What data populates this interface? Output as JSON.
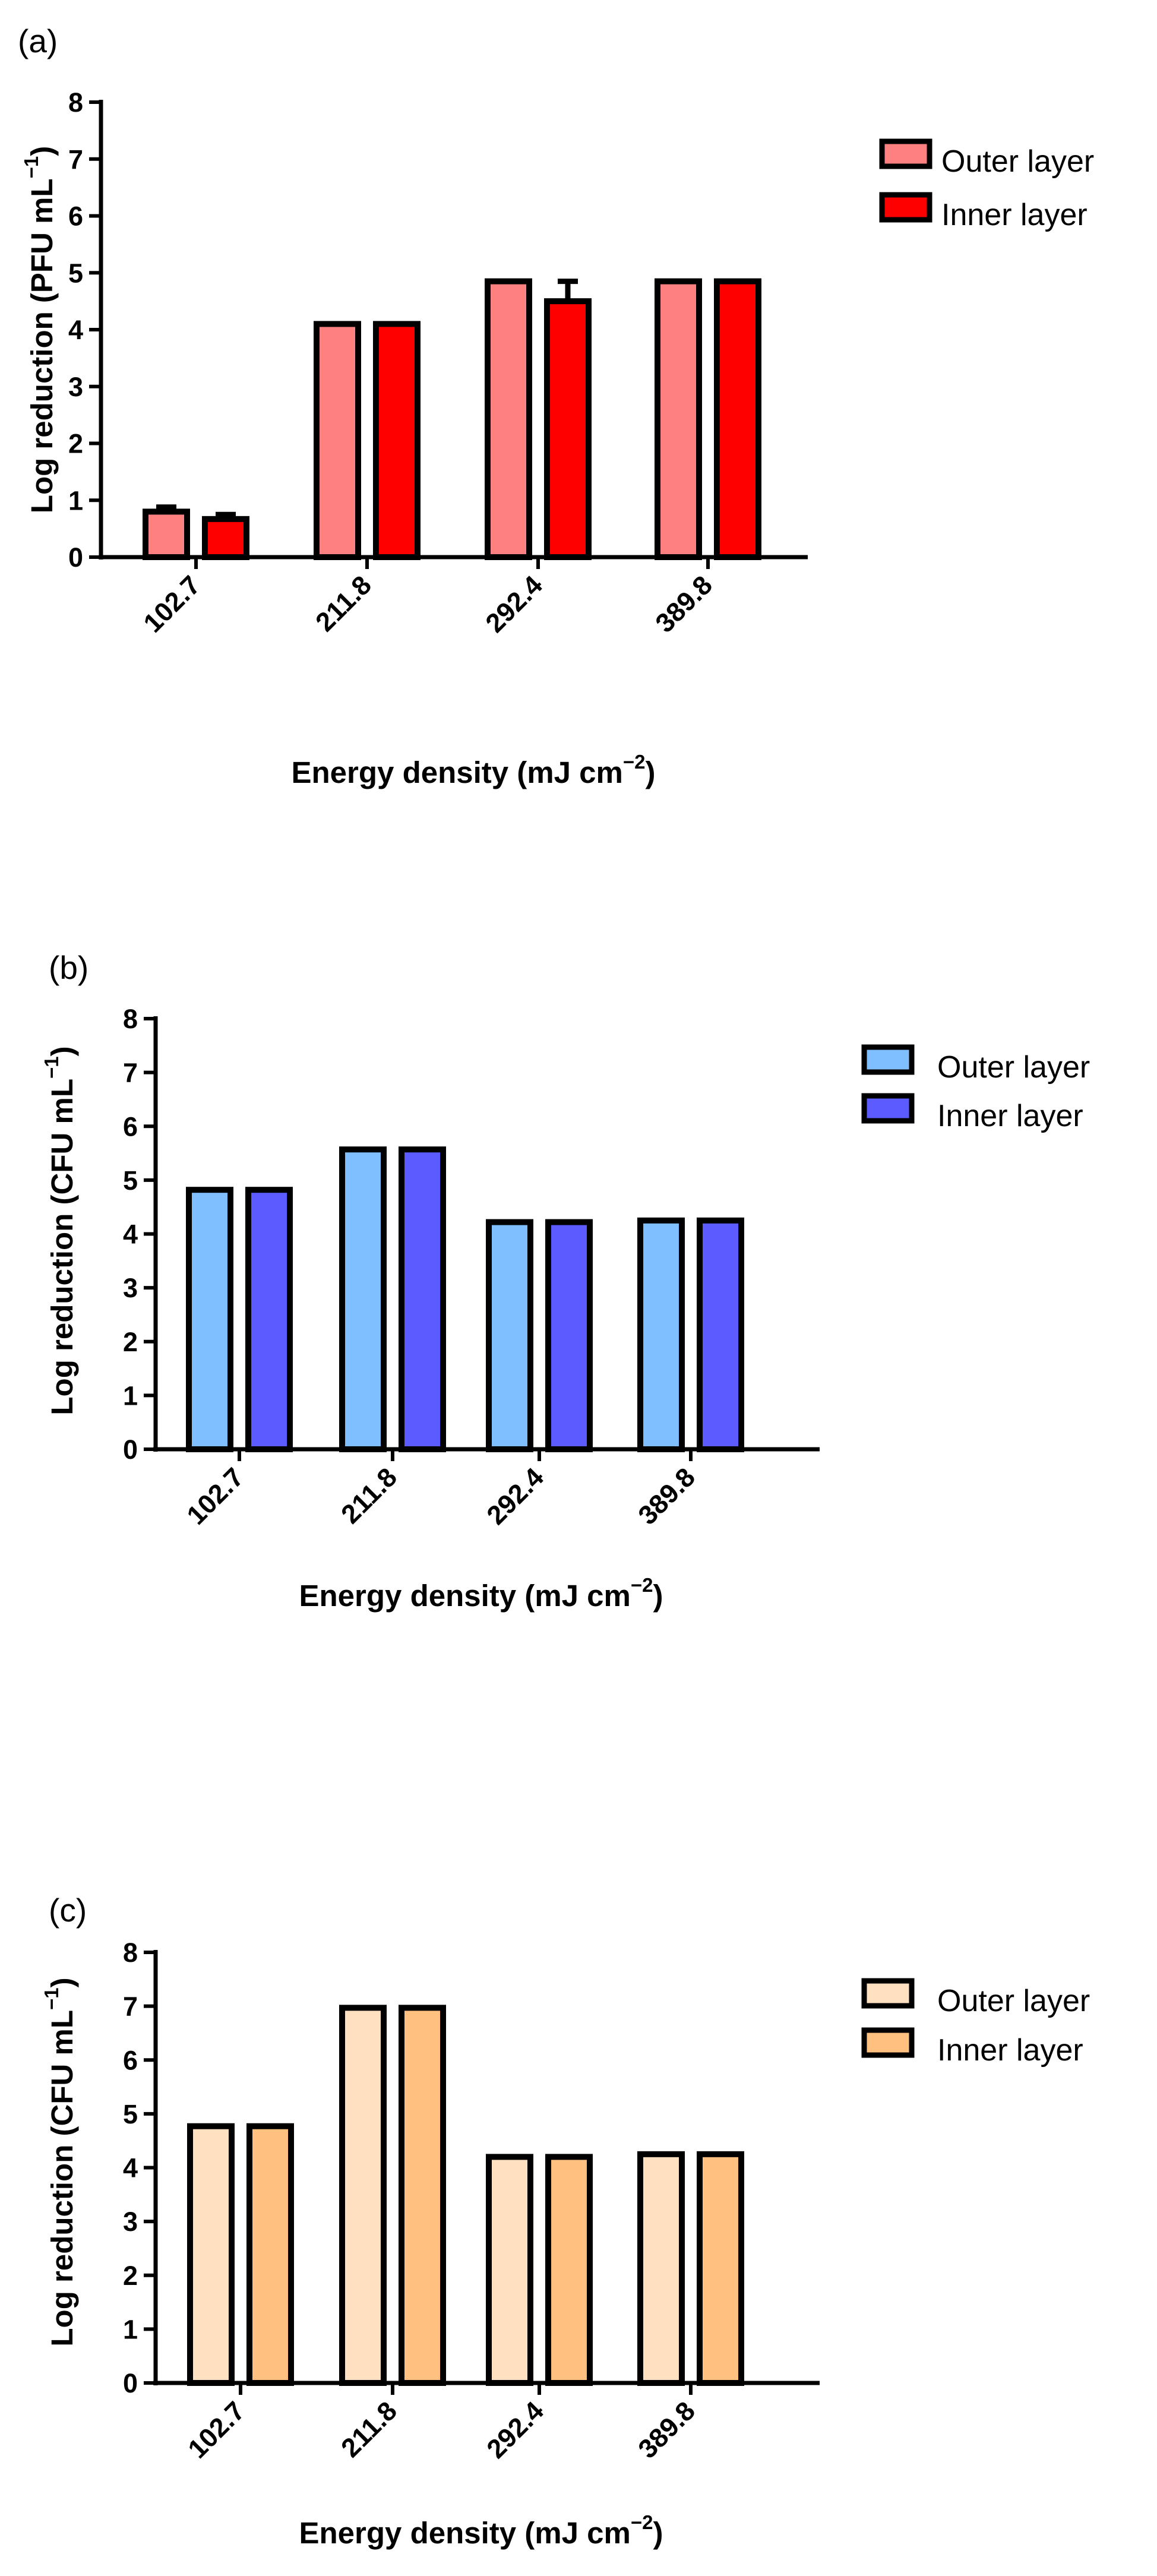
{
  "chart_data": [
    {
      "type": "bar",
      "panel_label": "(a)",
      "categories": [
        "102.7",
        "211.8",
        "292.4",
        "389.8"
      ],
      "series": [
        {
          "name": "Outer layer",
          "values": [
            0.8,
            4.1,
            4.85,
            4.85
          ],
          "errors": [
            0.08,
            0,
            0,
            0
          ],
          "color": "#ff8080"
        },
        {
          "name": "Inner layer",
          "values": [
            0.67,
            4.1,
            4.5,
            4.85
          ],
          "errors": [
            0.08,
            0,
            0.35,
            0
          ],
          "color": "#ff0000"
        }
      ],
      "ylabel_main": "Log reduction (PFU mL",
      "ylabel_sup": "−1",
      "ylabel_end": ")",
      "xlabel_main": "Energy density (mJ cm",
      "xlabel_sup": "−2",
      "xlabel_end": ")",
      "ylim": [
        0,
        8
      ],
      "yticks": [
        "0",
        "1",
        "2",
        "3",
        "4",
        "5",
        "6",
        "7",
        "8"
      ],
      "legend_position": "top-right"
    },
    {
      "type": "bar",
      "panel_label": "(b)",
      "categories": [
        "102.7",
        "211.8",
        "292.4",
        "389.8"
      ],
      "series": [
        {
          "name": "Outer layer",
          "values": [
            4.82,
            5.57,
            4.22,
            4.25
          ],
          "errors": [
            0,
            0,
            0,
            0
          ],
          "color": "#80bfff"
        },
        {
          "name": "Inner layer",
          "values": [
            4.82,
            5.57,
            4.22,
            4.25
          ],
          "errors": [
            0,
            0,
            0,
            0
          ],
          "color": "#5b5bff"
        }
      ],
      "ylabel_main": "Log reduction (CFU mL",
      "ylabel_sup": "−1",
      "ylabel_end": ")",
      "xlabel_main": "Energy density (mJ cm",
      "xlabel_sup": "−2",
      "xlabel_end": ")",
      "ylim": [
        0,
        8
      ],
      "yticks": [
        "0",
        "1",
        "2",
        "3",
        "4",
        "5",
        "6",
        "7",
        "8"
      ],
      "legend_position": "top-right"
    },
    {
      "type": "bar",
      "panel_label": "(c)",
      "categories": [
        "102.7",
        "211.8",
        "292.4",
        "389.8"
      ],
      "series": [
        {
          "name": "Outer layer",
          "values": [
            4.77,
            6.97,
            4.2,
            4.25
          ],
          "errors": [
            0,
            0,
            0,
            0
          ],
          "color": "#ffe0c0"
        },
        {
          "name": "Inner layer",
          "values": [
            4.77,
            6.97,
            4.2,
            4.25
          ],
          "errors": [
            0,
            0,
            0,
            0
          ],
          "color": "#ffc080"
        }
      ],
      "ylabel_main": "Log reduction (CFU mL",
      "ylabel_sup": "−1",
      "ylabel_end": ")",
      "xlabel_main": "Energy density (mJ cm",
      "xlabel_sup": "−2",
      "xlabel_end": ")",
      "ylim": [
        0,
        8
      ],
      "yticks": [
        "0",
        "1",
        "2",
        "3",
        "4",
        "5",
        "6",
        "7",
        "8"
      ],
      "legend_position": "top-right"
    }
  ]
}
